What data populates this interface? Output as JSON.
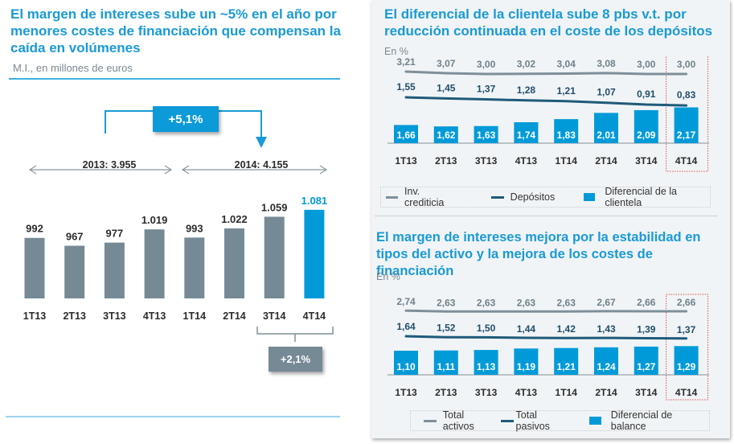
{
  "left": {
    "title": "El margen de intereses sube un ~5% en el año por menores costes de financiación que compensan la caída en volúmenes",
    "subtitle": "M.I., en millones de euros",
    "growth_badge": "+5,1%",
    "bracket_badge": "+2,1%",
    "period_2013": "2013: 3.955",
    "period_2014": "2014: 4.155"
  },
  "right_top": {
    "title": "El diferencial de la clientela sube 8 pbs v.t. por reducción continuada en el coste de los depósitos",
    "unit": "En %",
    "legend": [
      "Inv. crediticia",
      "Depósitos",
      "Diferencial de la clientela"
    ]
  },
  "right_bottom": {
    "title": "El margen de intereses mejora por la estabilidad en tipos del activo y la mejora de los costes de financiación",
    "unit": "En %",
    "legend": [
      "Total activos",
      "Total pasivos",
      "Diferencial de balance"
    ]
  },
  "colors": {
    "accent": "#009ad9",
    "bar_gray": "#768a96",
    "line_light": "#7d8f9a",
    "line_dark": "#1f5a7a",
    "highlight_box": "#d9534f",
    "panel_bg": "#f1f4f6"
  },
  "chart_data": [
    {
      "type": "bar",
      "title": "Margen de intereses",
      "ylabel": "M.I., en millones de euros",
      "categories": [
        "1T13",
        "2T13",
        "3T13",
        "4T13",
        "1T14",
        "2T14",
        "3T14",
        "4T14"
      ],
      "values": [
        992,
        967,
        977,
        1019,
        993,
        1022,
        1059,
        1081
      ],
      "value_labels": [
        "992",
        "967",
        "977",
        "1.019",
        "993",
        "1.022",
        "1.059",
        "1.081"
      ],
      "highlight_index": 7,
      "annotations": [
        "2013: 3.955",
        "2014: 4.155",
        "+5,1%",
        "+2,1%"
      ]
    },
    {
      "type": "bar",
      "title": "Diferencial de la clientela",
      "ylabel": "En %",
      "categories": [
        "1T13",
        "2T13",
        "3T13",
        "4T13",
        "1T14",
        "2T14",
        "3T14",
        "4T14"
      ],
      "series": [
        {
          "name": "Inv. crediticia",
          "kind": "line",
          "values": [
            3.21,
            3.07,
            3.0,
            3.02,
            3.04,
            3.08,
            3.0,
            3.0
          ],
          "labels": [
            "3,21",
            "3,07",
            "3,00",
            "3,02",
            "3,04",
            "3,08",
            "3,00",
            "3,00"
          ]
        },
        {
          "name": "Depósitos",
          "kind": "line",
          "values": [
            1.55,
            1.45,
            1.37,
            1.28,
            1.21,
            1.07,
            0.91,
            0.83
          ],
          "labels": [
            "1,55",
            "1,45",
            "1,37",
            "1,28",
            "1,21",
            "1,07",
            "0,91",
            "0,83"
          ]
        },
        {
          "name": "Diferencial de la clientela",
          "kind": "bar",
          "values": [
            1.66,
            1.62,
            1.63,
            1.74,
            1.83,
            2.01,
            2.09,
            2.17
          ],
          "labels": [
            "1,66",
            "1,62",
            "1,63",
            "1,74",
            "1,83",
            "2,01",
            "2,09",
            "2,17"
          ]
        }
      ],
      "legend": "bottom",
      "highlight_index": 7
    },
    {
      "type": "bar",
      "title": "Diferencial de balance",
      "ylabel": "En %",
      "categories": [
        "1T13",
        "2T13",
        "3T13",
        "4T13",
        "1T14",
        "2T14",
        "3T14",
        "4T14"
      ],
      "series": [
        {
          "name": "Total activos",
          "kind": "line",
          "values": [
            2.74,
            2.63,
            2.63,
            2.63,
            2.63,
            2.67,
            2.66,
            2.66
          ],
          "labels": [
            "2,74",
            "2,63",
            "2,63",
            "2,63",
            "2,63",
            "2,67",
            "2,66",
            "2,66"
          ]
        },
        {
          "name": "Total pasivos",
          "kind": "line",
          "values": [
            1.64,
            1.52,
            1.5,
            1.44,
            1.42,
            1.43,
            1.39,
            1.37
          ],
          "labels": [
            "1,64",
            "1,52",
            "1,50",
            "1,44",
            "1,42",
            "1,43",
            "1,39",
            "1,37"
          ]
        },
        {
          "name": "Diferencial de balance",
          "kind": "bar",
          "values": [
            1.1,
            1.11,
            1.13,
            1.19,
            1.21,
            1.24,
            1.27,
            1.29
          ],
          "labels": [
            "1,10",
            "1,11",
            "1,13",
            "1,19",
            "1,21",
            "1,24",
            "1,27",
            "1,29"
          ]
        }
      ],
      "legend": "bottom",
      "highlight_index": 7
    }
  ]
}
